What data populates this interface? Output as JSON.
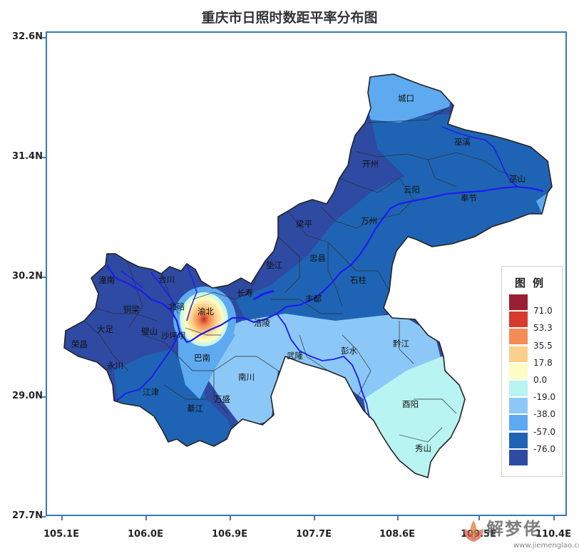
{
  "title": "重庆市日照时数距平率分布图",
  "axes": {
    "y_ticks": [
      "32.6N",
      "31.4N",
      "30.2N",
      "29.0N",
      "27.7N"
    ],
    "x_ticks": [
      "105.1E",
      "106.0E",
      "106.9E",
      "107.7E",
      "108.6E",
      "109.5E",
      "110.4E"
    ]
  },
  "places": [
    {
      "name": "城口"
    },
    {
      "name": "巫溪"
    },
    {
      "name": "巫山"
    },
    {
      "name": "开州"
    },
    {
      "name": "云阳"
    },
    {
      "name": "奉节"
    },
    {
      "name": "梁平"
    },
    {
      "name": "万州"
    },
    {
      "name": "忠县"
    },
    {
      "name": "垫江"
    },
    {
      "name": "石柱"
    },
    {
      "name": "长寿"
    },
    {
      "name": "丰都"
    },
    {
      "name": "潼南"
    },
    {
      "name": "合川"
    },
    {
      "name": "北碚"
    },
    {
      "name": "渝北"
    },
    {
      "name": "铜梁"
    },
    {
      "name": "大足"
    },
    {
      "name": "璧山"
    },
    {
      "name": "沙坪坝"
    },
    {
      "name": "涪陵"
    },
    {
      "name": "荣昌"
    },
    {
      "name": "永川"
    },
    {
      "name": "巴南"
    },
    {
      "name": "武隆"
    },
    {
      "name": "彭水"
    },
    {
      "name": "黔江"
    },
    {
      "name": "南川"
    },
    {
      "name": "江津"
    },
    {
      "name": "万盛"
    },
    {
      "name": "綦江"
    },
    {
      "name": "酉阳"
    },
    {
      "name": "秀山"
    }
  ],
  "legend": {
    "title": "图例",
    "items": [
      {
        "label": "71.0",
        "color": "#9b1f33"
      },
      {
        "label": "53.3",
        "color": "#d83a2e"
      },
      {
        "label": "35.5",
        "color": "#f48c55"
      },
      {
        "label": "17.8",
        "color": "#fbd08a"
      },
      {
        "label": "0.0",
        "color": "#fdfdc6"
      },
      {
        "label": "-19.0",
        "color": "#b8f4f1"
      },
      {
        "label": "-38.0",
        "color": "#8cc8f7"
      },
      {
        "label": "-57.0",
        "color": "#5eaaf0"
      },
      {
        "label": "-76.0",
        "color": "#1f64b4"
      },
      {
        "label": "",
        "color": "#2e4aa3"
      }
    ]
  },
  "colors": {
    "river": "#1c1cf0",
    "frame": "#3a78b5",
    "border": "#333333"
  },
  "watermark": {
    "brand": "解梦佬",
    "url": "www.jiemenglao.com"
  }
}
